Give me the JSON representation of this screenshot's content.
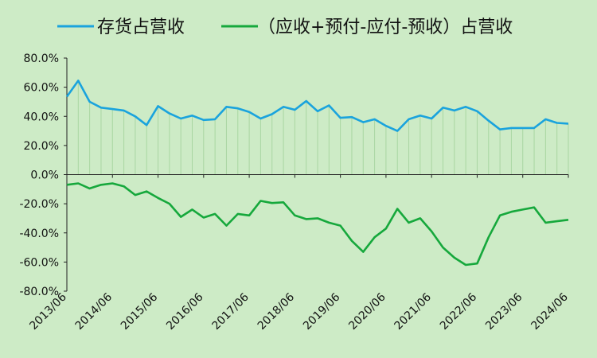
{
  "chart_data": {
    "type": "line",
    "x": [
      "2013/06",
      "2013/09",
      "2013/12",
      "2014/03",
      "2014/06",
      "2014/09",
      "2014/12",
      "2015/03",
      "2015/06",
      "2015/09",
      "2015/12",
      "2016/03",
      "2016/06",
      "2016/09",
      "2016/12",
      "2017/03",
      "2017/06",
      "2017/09",
      "2017/12",
      "2018/03",
      "2018/06",
      "2018/09",
      "2018/12",
      "2019/03",
      "2019/06",
      "2019/09",
      "2019/12",
      "2020/03",
      "2020/06",
      "2020/09",
      "2020/12",
      "2021/03",
      "2021/06",
      "2021/09",
      "2021/12",
      "2022/03",
      "2022/06",
      "2022/09",
      "2022/12",
      "2023/03",
      "2023/06",
      "2023/09",
      "2023/12",
      "2024/03",
      "2024/06"
    ],
    "xticks": [
      "2013/06",
      "2014/06",
      "2015/06",
      "2016/06",
      "2017/06",
      "2018/06",
      "2019/06",
      "2020/06",
      "2021/06",
      "2022/06",
      "2023/06",
      "2024/06"
    ],
    "ylim": [
      -80,
      80
    ],
    "yticks": [
      80,
      60,
      40,
      20,
      0,
      -20,
      -40,
      -60,
      -80
    ],
    "ytick_labels": [
      "80.0%",
      "60.0%",
      "40.0%",
      "20.0%",
      "0.0%",
      "-20.0%",
      "-40.0%",
      "-60.0%",
      "-80.0%"
    ],
    "legend_position": "top",
    "series": [
      {
        "name": "存货占营收",
        "color": "#1aa3dd",
        "values": [
          53.5,
          64.5,
          50,
          46,
          45,
          44,
          40,
          34,
          47,
          42,
          38.5,
          40.5,
          37.5,
          38,
          46.5,
          45.5,
          43,
          38.5,
          41.5,
          46.5,
          44.5,
          50.5,
          43.5,
          47.5,
          39,
          39.5,
          36,
          38,
          33.5,
          30,
          38,
          40.5,
          38.5,
          46,
          44,
          46.5,
          43.5,
          37,
          31,
          32,
          32,
          32,
          38,
          35.5,
          35
        ]
      },
      {
        "name": "（应收+预付-应付-预收）占营收",
        "color": "#16a83c",
        "values": [
          -7,
          -6,
          -9.5,
          -7,
          -6,
          -8,
          -14,
          -11.5,
          -16,
          -20,
          -29,
          -24,
          -29.5,
          -27,
          -35,
          -27,
          -28,
          -18,
          -19.5,
          -19,
          -28,
          -30.5,
          -30,
          -33,
          -35,
          -45.5,
          -53,
          -43,
          -37,
          -23.5,
          -33,
          -30,
          -39,
          -50,
          -57,
          -62,
          -61,
          -43,
          -28,
          -25.5,
          -24,
          -22.5,
          -33,
          -32,
          -31
        ]
      }
    ]
  }
}
